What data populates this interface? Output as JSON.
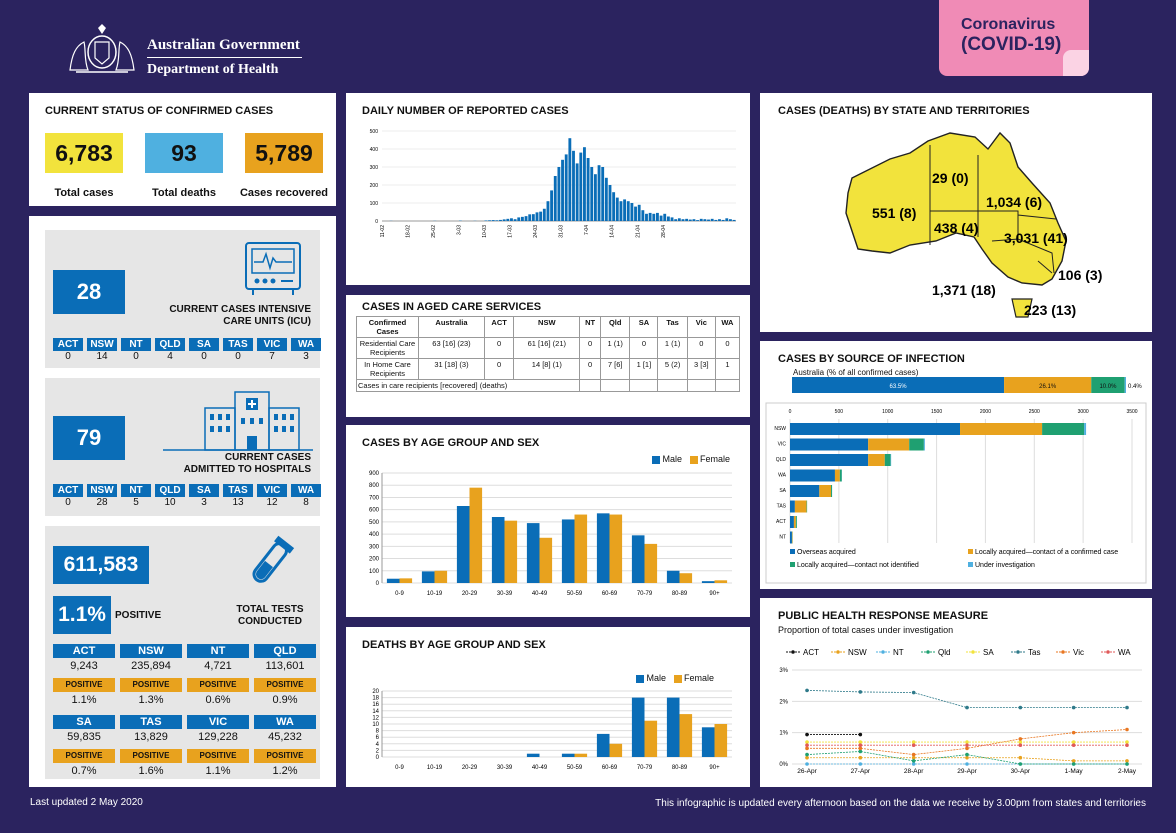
{
  "header": {
    "gov": "Australian Government",
    "dept": "Department of Health",
    "badge_line1": "Coronavirus",
    "badge_line2": "(COVID-19)"
  },
  "status": {
    "title": "CURRENT STATUS OF CONFIRMED CASES",
    "total": "6,783",
    "total_label": "Total cases",
    "deaths": "93",
    "deaths_label": "Total deaths",
    "recovered": "5,789",
    "recovered_label": "Cases recovered"
  },
  "states": [
    "ACT",
    "NSW",
    "NT",
    "QLD",
    "SA",
    "TAS",
    "VIC",
    "WA"
  ],
  "icu": {
    "value": "28",
    "label": "CURRENT CASES INTENSIVE CARE UNITS (ICU)",
    "counts": [
      "0",
      "14",
      "0",
      "4",
      "0",
      "0",
      "7",
      "3"
    ]
  },
  "hospital": {
    "value": "79",
    "label": "CURRENT CASES ADMITTED TO HOSPITALS",
    "counts": [
      "0",
      "28",
      "5",
      "10",
      "3",
      "13",
      "12",
      "8"
    ]
  },
  "tests": {
    "value": "611,583",
    "positive": "1.1%",
    "positive_label": "POSITIVE",
    "label": "TOTAL TESTS CONDUCTED",
    "pos_word": "POSITIVE",
    "rows": [
      [
        {
          "s": "ACT",
          "n": "9,243",
          "p": "1.1%"
        },
        {
          "s": "NSW",
          "n": "235,894",
          "p": "1.3%"
        },
        {
          "s": "NT",
          "n": "4,721",
          "p": "0.6%"
        },
        {
          "s": "QLD",
          "n": "113,601",
          "p": "0.9%"
        }
      ],
      [
        {
          "s": "SA",
          "n": "59,835",
          "p": "0.7%"
        },
        {
          "s": "TAS",
          "n": "13,829",
          "p": "1.6%"
        },
        {
          "s": "VIC",
          "n": "129,228",
          "p": "1.1%"
        },
        {
          "s": "WA",
          "n": "45,232",
          "p": "1.2%"
        }
      ]
    ]
  },
  "footer": {
    "updated": "Last updated 2 May 2020",
    "note": "This infographic is updated every afternoon based on the data we receive by 3.00pm from states and territories"
  },
  "aged": {
    "title": "CASES IN AGED CARE SERVICES",
    "header": [
      "Confirmed Cases",
      "Australia",
      "ACT",
      "NSW",
      "NT",
      "Qld",
      "SA",
      "Tas",
      "Vic",
      "WA"
    ],
    "rows": [
      [
        "Residential Care Recipients",
        "63 [16] (23)",
        "0",
        "61 [16] (21)",
        "0",
        "1 (1)",
        "0",
        "1 (1)",
        "0",
        "0"
      ],
      [
        "In Home Care Recipients",
        "31 [18] (3)",
        "0",
        "14 [8] (1)",
        "0",
        "7 [6]",
        "1 [1]",
        "5 (2)",
        "3 [3]",
        "1"
      ]
    ],
    "note": "Cases in care recipients [recovered] (deaths)"
  },
  "map": {
    "title": "CASES (DEATHS) BY STATE AND TERRITORIES",
    "labels": {
      "wa": "551 (8)",
      "nt": "29 (0)",
      "qld": "1,034 (6)",
      "sa": "438 (4)",
      "nsw": "3,031 (41)",
      "act": "106 (3)",
      "vic": "1,371 (18)",
      "tas": "223 (13)"
    }
  },
  "colors": {
    "navy": "#2b235f",
    "yellow": "#f2e33c",
    "lightblue": "#4fb0e0",
    "orange": "#e8a21e",
    "blue": "#0a6db7",
    "green": "#1fa071",
    "pink": "#f08bb6"
  },
  "chart_data": [
    {
      "type": "bar",
      "title": "DAILY NUMBER OF REPORTED CASES",
      "ylim": [
        0,
        500
      ],
      "yticks": [
        "0",
        "100",
        "200",
        "300",
        "400",
        "500"
      ],
      "xticks": [
        "11-02",
        "18-02",
        "25-02",
        "3-03",
        "10-03",
        "17-03",
        "24-03",
        "31-03",
        "7-04",
        "14-04",
        "21-04",
        "28-04"
      ],
      "values": [
        0,
        0,
        1,
        0,
        0,
        0,
        0,
        0,
        0,
        0,
        0,
        0,
        0,
        0,
        1,
        0,
        0,
        0,
        0,
        0,
        0,
        2,
        0,
        0,
        0,
        1,
        0,
        0,
        3,
        4,
        5,
        4,
        6,
        9,
        12,
        15,
        10,
        20,
        23,
        27,
        37,
        38,
        48,
        52,
        68,
        110,
        170,
        250,
        300,
        340,
        370,
        460,
        390,
        320,
        380,
        410,
        350,
        300,
        260,
        310,
        300,
        240,
        200,
        160,
        130,
        110,
        120,
        110,
        100,
        80,
        90,
        60,
        40,
        45,
        40,
        45,
        30,
        40,
        25,
        20,
        10,
        15,
        10,
        12,
        8,
        10,
        5,
        12,
        10,
        8,
        12,
        6,
        10,
        6,
        15,
        10,
        6
      ]
    },
    {
      "type": "bar",
      "title": "CASES BY AGE GROUP AND SEX",
      "ylim": [
        0,
        900
      ],
      "yticks": [
        "0",
        "100",
        "200",
        "300",
        "400",
        "500",
        "600",
        "700",
        "800",
        "900"
      ],
      "categories": [
        "0-9",
        "10-19",
        "20-29",
        "30-39",
        "40-49",
        "50-59",
        "60-69",
        "70-79",
        "80-89",
        "90+"
      ],
      "series": [
        {
          "name": "Male",
          "values": [
            35,
            95,
            630,
            540,
            490,
            520,
            570,
            390,
            100,
            15
          ]
        },
        {
          "name": "Female",
          "values": [
            38,
            100,
            780,
            510,
            370,
            560,
            560,
            320,
            80,
            22
          ]
        }
      ]
    },
    {
      "type": "bar",
      "title": "DEATHS BY AGE GROUP AND SEX",
      "ylim": [
        0,
        20
      ],
      "yticks": [
        "0",
        "2",
        "4",
        "6",
        "8",
        "10",
        "12",
        "14",
        "16",
        "18",
        "20"
      ],
      "categories": [
        "0-9",
        "10-19",
        "20-29",
        "30-39",
        "40-49",
        "50-59",
        "60-69",
        "70-79",
        "80-89",
        "90+"
      ],
      "series": [
        {
          "name": "Male",
          "values": [
            0,
            0,
            0,
            0,
            1,
            1,
            7,
            18,
            18,
            9
          ]
        },
        {
          "name": "Female",
          "values": [
            0,
            0,
            0,
            0,
            0,
            1,
            4,
            11,
            13,
            10
          ]
        }
      ]
    },
    {
      "type": "bar",
      "title": "CASES BY SOURCE OF INFECTION",
      "subtitle": "Australia (% of all confirmed cases)",
      "australia_pct": [
        {
          "name": "Overseas acquired",
          "value": 63.5,
          "label": "63.5%"
        },
        {
          "name": "Locally acquired—contact of a confirmed case",
          "value": 26.1,
          "label": "26.1%"
        },
        {
          "name": "Locally acquired—contact not identified",
          "value": 10.0,
          "label": "10.0%"
        },
        {
          "name": "Under investigation",
          "value": 0.4,
          "label": "0.4%"
        }
      ],
      "xticks": [
        "0",
        "500",
        "1000",
        "1500",
        "2000",
        "2500",
        "3000",
        "3500"
      ],
      "xlim": [
        0,
        3500
      ],
      "categories": [
        "NSW",
        "VIC",
        "QLD",
        "WA",
        "SA",
        "TAS",
        "ACT",
        "NT"
      ],
      "series": [
        {
          "name": "Overseas acquired",
          "values": [
            1740,
            800,
            800,
            460,
            300,
            50,
            40,
            20
          ]
        },
        {
          "name": "Locally acquired—contact of a confirmed case",
          "values": [
            840,
            420,
            170,
            50,
            120,
            120,
            20,
            5
          ]
        },
        {
          "name": "Locally acquired—contact not identified",
          "values": [
            430,
            150,
            60,
            20,
            10,
            5,
            10,
            2
          ]
        },
        {
          "name": "Under investigation",
          "values": [
            20,
            10,
            5,
            2,
            1,
            0,
            0,
            0
          ]
        }
      ]
    },
    {
      "type": "line",
      "title": "PUBLIC HEALTH RESPONSE MEASURE",
      "subtitle": "Proportion of total cases under investigation",
      "ylim": [
        0,
        3
      ],
      "yticks": [
        "0%",
        "1%",
        "2%",
        "3%"
      ],
      "x": [
        "26-Apr",
        "27-Apr",
        "28-Apr",
        "29-Apr",
        "30-Apr",
        "1-May",
        "2-May"
      ],
      "series": [
        {
          "name": "ACT",
          "values": [
            0.94,
            0.94,
            null,
            null,
            null,
            null,
            null
          ]
        },
        {
          "name": "NSW",
          "values": [
            0.2,
            0.2,
            0.2,
            0.2,
            0.2,
            0.1,
            0.1
          ]
        },
        {
          "name": "NT",
          "values": [
            0,
            0,
            0,
            0,
            0,
            0,
            0
          ]
        },
        {
          "name": "Qld",
          "values": [
            0.3,
            0.4,
            0.1,
            0.3,
            0,
            0,
            0
          ]
        },
        {
          "name": "SA",
          "values": [
            0.7,
            0.7,
            0.7,
            0.7,
            0.7,
            0.7,
            0.7
          ]
        },
        {
          "name": "Tas",
          "values": [
            2.35,
            2.3,
            2.28,
            1.8,
            1.8,
            1.8,
            1.8
          ]
        },
        {
          "name": "Vic",
          "values": [
            0.5,
            0.5,
            0.3,
            0.5,
            0.8,
            1.0,
            1.1
          ]
        },
        {
          "name": "WA",
          "values": [
            0.6,
            0.6,
            0.6,
            0.6,
            0.6,
            0.6,
            0.6
          ]
        }
      ]
    }
  ]
}
